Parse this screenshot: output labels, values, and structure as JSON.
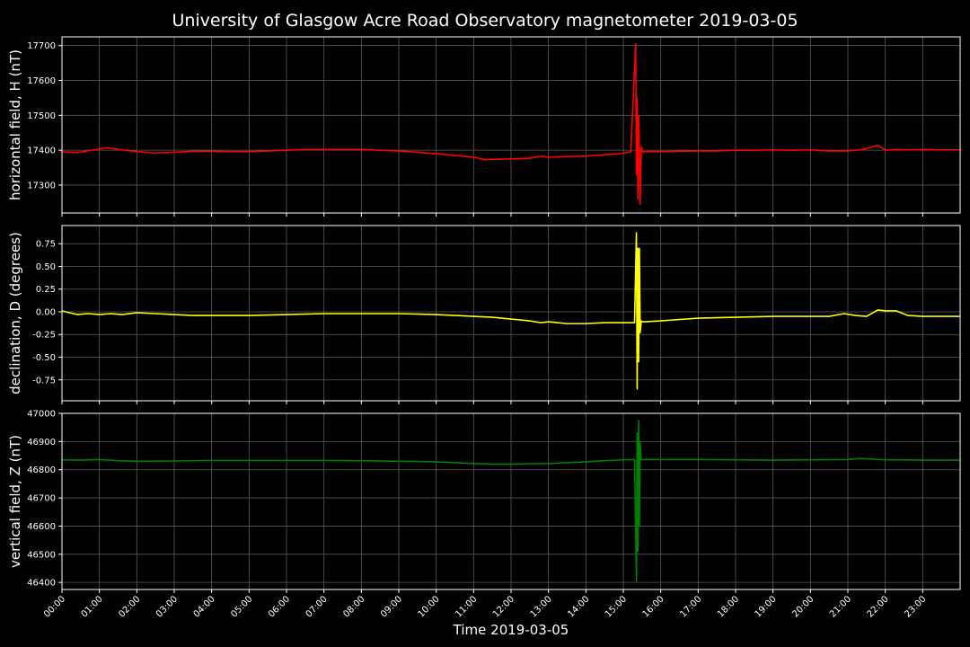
{
  "title": "University of Glasgow Acre Road Observatory magnetometer 2019-03-05",
  "xlabel": "Time 2019-03-05",
  "x_ticks": [
    "00:00",
    "01:00",
    "02:00",
    "03:00",
    "04:00",
    "05:00",
    "06:00",
    "07:00",
    "08:00",
    "09:00",
    "10:00",
    "11:00",
    "12:00",
    "13:00",
    "14:00",
    "15:00",
    "16:00",
    "17:00",
    "18:00",
    "19:00",
    "20:00",
    "21:00",
    "22:00",
    "23:00"
  ],
  "colors": {
    "background": "#000000",
    "grid": "#5a5a5a",
    "axis": "#ffffff",
    "H": "#ff0000",
    "D": "#ffff00",
    "Z": "#008000"
  },
  "chart_data": [
    {
      "type": "line",
      "name": "H",
      "color": "#ff0000",
      "ylabel": "horizontal field, H (nT)",
      "ylim": [
        17220,
        17725
      ],
      "xlim": [
        0,
        24
      ],
      "yticks": [
        17300,
        17400,
        17500,
        17600,
        17700
      ],
      "grid": true,
      "x": [
        0,
        0.4,
        0.8,
        1.2,
        1.6,
        2.0,
        2.5,
        3.0,
        3.5,
        4.0,
        4.5,
        5.0,
        5.5,
        6.0,
        6.5,
        7.0,
        7.5,
        8.0,
        8.5,
        9.0,
        9.5,
        10.0,
        10.5,
        11.0,
        11.3,
        11.6,
        12.0,
        12.5,
        12.8,
        13.0,
        13.5,
        14.0,
        14.5,
        14.9,
        15.2,
        15.33,
        15.35,
        15.37,
        15.39,
        15.41,
        15.43,
        15.45,
        15.48,
        15.52,
        15.6,
        16.0,
        16.5,
        17.0,
        17.5,
        18.0,
        18.5,
        19.0,
        19.5,
        20.0,
        20.5,
        21.0,
        21.4,
        21.8,
        22.0,
        22.3,
        22.6,
        23.0,
        23.5,
        23.99
      ],
      "y": [
        17395,
        17393,
        17400,
        17407,
        17401,
        17396,
        17392,
        17394,
        17397,
        17397,
        17396,
        17396,
        17398,
        17400,
        17402,
        17402,
        17402,
        17402,
        17400,
        17398,
        17394,
        17390,
        17385,
        17380,
        17373,
        17374,
        17375,
        17377,
        17383,
        17380,
        17382,
        17383,
        17387,
        17390,
        17395,
        17705,
        17330,
        17550,
        17260,
        17500,
        17390,
        17245,
        17410,
        17394,
        17396,
        17396,
        17397,
        17398,
        17398,
        17400,
        17400,
        17401,
        17400,
        17401,
        17398,
        17398,
        17402,
        17414,
        17400,
        17402,
        17401,
        17402,
        17401,
        17401
      ]
    },
    {
      "type": "line",
      "name": "D",
      "color": "#ffff00",
      "ylabel": "declination, D (degrees)",
      "ylim": [
        -0.98,
        0.95
      ],
      "xlim": [
        0,
        24
      ],
      "yticks": [
        -0.75,
        -0.5,
        -0.25,
        0.0,
        0.25,
        0.5,
        0.75
      ],
      "grid": true,
      "x": [
        0,
        0.2,
        0.4,
        0.7,
        1.0,
        1.3,
        1.6,
        2.0,
        2.5,
        3.0,
        3.5,
        4.0,
        5.0,
        6.0,
        7.0,
        8.0,
        9.0,
        10.0,
        10.5,
        11.0,
        11.5,
        12.0,
        12.5,
        12.8,
        13.0,
        13.5,
        14.0,
        14.5,
        15.0,
        15.3,
        15.35,
        15.37,
        15.39,
        15.41,
        15.43,
        15.45,
        15.48,
        15.5,
        15.6,
        16.0,
        17.0,
        18.0,
        19.0,
        20.0,
        20.5,
        20.9,
        21.2,
        21.5,
        21.8,
        22.0,
        22.3,
        22.6,
        23.0,
        23.5,
        23.99
      ],
      "y": [
        0.01,
        -0.01,
        -0.03,
        -0.02,
        -0.03,
        -0.02,
        -0.03,
        -0.01,
        -0.02,
        -0.03,
        -0.04,
        -0.04,
        -0.04,
        -0.03,
        -0.02,
        -0.02,
        -0.02,
        -0.03,
        -0.04,
        -0.05,
        -0.06,
        -0.08,
        -0.1,
        -0.12,
        -0.11,
        -0.13,
        -0.13,
        -0.12,
        -0.12,
        -0.12,
        0.87,
        -0.85,
        0.7,
        -0.55,
        0.7,
        -0.23,
        -0.1,
        -0.11,
        -0.11,
        -0.1,
        -0.07,
        -0.06,
        -0.05,
        -0.05,
        -0.05,
        -0.02,
        -0.04,
        -0.05,
        0.02,
        0.01,
        0.01,
        -0.04,
        -0.05,
        -0.05,
        -0.05
      ]
    },
    {
      "type": "line",
      "name": "Z",
      "color": "#008000",
      "ylabel": "vertical field, Z (nT)",
      "ylim": [
        46375,
        47000
      ],
      "xlim": [
        0,
        24
      ],
      "yticks": [
        46400,
        46500,
        46600,
        46700,
        46800,
        46900,
        47000
      ],
      "grid": true,
      "x": [
        0,
        0.5,
        1.0,
        1.5,
        2.0,
        3.0,
        4.0,
        5.0,
        6.0,
        7.0,
        8.0,
        9.0,
        10.0,
        10.5,
        11.0,
        11.5,
        12.0,
        12.5,
        13.0,
        13.5,
        14.0,
        14.5,
        15.0,
        15.3,
        15.35,
        15.37,
        15.39,
        15.41,
        15.43,
        15.45,
        15.48,
        15.52,
        15.6,
        16.0,
        17.0,
        18.0,
        19.0,
        20.0,
        21.0,
        21.3,
        21.6,
        22.0,
        22.5,
        23.0,
        23.99
      ],
      "y": [
        46835,
        46834,
        46836,
        46832,
        46830,
        46831,
        46833,
        46833,
        46833,
        46833,
        46832,
        46830,
        46828,
        46825,
        46822,
        46820,
        46820,
        46821,
        46822,
        46825,
        46828,
        46832,
        46835,
        46836,
        46405,
        46930,
        46510,
        46975,
        46600,
        46900,
        46835,
        46836,
        46836,
        46836,
        46836,
        46835,
        46834,
        46835,
        46836,
        46840,
        46838,
        46835,
        46835,
        46834,
        46834
      ]
    }
  ]
}
